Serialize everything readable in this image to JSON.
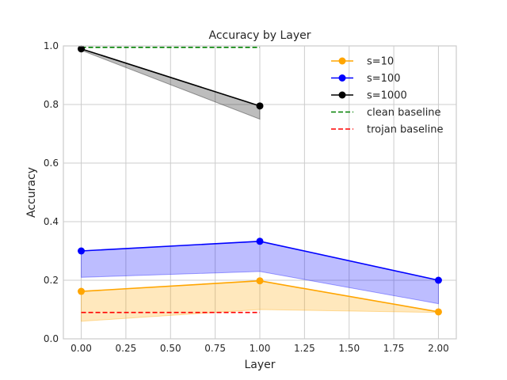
{
  "chart_data": {
    "type": "line",
    "title": "Accuracy by Layer",
    "xlabel": "Layer",
    "ylabel": "Accuracy",
    "xlim": [
      -0.1,
      2.1
    ],
    "ylim": [
      0.0,
      1.0
    ],
    "xticks": [
      "0.00",
      "0.25",
      "0.50",
      "0.75",
      "1.00",
      "1.25",
      "1.50",
      "1.75",
      "2.00"
    ],
    "yticks": [
      "0.0",
      "0.2",
      "0.4",
      "0.6",
      "0.8",
      "1.0"
    ],
    "grid": true,
    "legend_position": "top-right",
    "series": [
      {
        "name": "s=10",
        "color": "#ffa500",
        "x": [
          0,
          1,
          2
        ],
        "values": [
          0.162,
          0.198,
          0.092
        ],
        "band_lower": [
          0.06,
          0.1,
          0.09
        ]
      },
      {
        "name": "s=100",
        "color": "#0000ff",
        "x": [
          0,
          1,
          2
        ],
        "values": [
          0.3,
          0.333,
          0.2
        ],
        "band_lower": [
          0.21,
          0.23,
          0.12
        ]
      },
      {
        "name": "s=1000",
        "color": "#000000",
        "x": [
          0,
          1
        ],
        "values": [
          0.99,
          0.795
        ],
        "band_lower": [
          0.985,
          0.75
        ]
      }
    ],
    "baselines": [
      {
        "name": "clean baseline",
        "color": "#008000",
        "y": 0.995,
        "x": [
          0,
          1
        ]
      },
      {
        "name": "trojan baseline",
        "color": "#ff0000",
        "y": 0.09,
        "x": [
          0,
          1
        ]
      }
    ]
  }
}
